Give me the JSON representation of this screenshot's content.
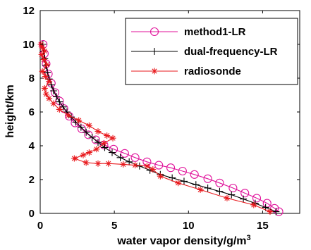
{
  "chart_data": {
    "type": "line",
    "title": "",
    "xlabel": "water vapor density/g/m",
    "xlabel_sup": "3",
    "ylabel": "height/km",
    "xlim": [
      0,
      17.5
    ],
    "ylim": [
      0,
      12
    ],
    "xticks": [
      0,
      5,
      10,
      15
    ],
    "yticks": [
      0,
      2,
      4,
      6,
      8,
      10,
      12
    ],
    "grid": false,
    "legend_position": "top-right",
    "series": [
      {
        "name": "method1-LR",
        "color": "#e0109a",
        "marker": "circle",
        "x": [
          16.1,
          15.8,
          15.3,
          14.6,
          13.8,
          13.0,
          12.1,
          11.3,
          10.4,
          9.6,
          8.8,
          8.0,
          7.2,
          6.4,
          5.7,
          4.95,
          4.3,
          3.75,
          3.25,
          2.8,
          2.35,
          1.95,
          1.6,
          1.3,
          1.0,
          0.75,
          0.55,
          0.4,
          0.28,
          0.2
        ],
        "y": [
          0.1,
          0.3,
          0.6,
          0.9,
          1.2,
          1.5,
          1.8,
          2.05,
          2.3,
          2.5,
          2.7,
          2.85,
          3.05,
          3.3,
          3.55,
          3.8,
          4.05,
          4.35,
          4.65,
          5.0,
          5.35,
          5.75,
          6.2,
          6.65,
          7.15,
          7.7,
          8.25,
          8.85,
          9.45,
          10.0
        ]
      },
      {
        "name": "dual-frequency-LR",
        "color": "#000000",
        "marker": "plus",
        "x": [
          15.9,
          15.2,
          14.5,
          13.7,
          12.9,
          12.1,
          11.3,
          10.5,
          9.7,
          8.9,
          8.1,
          7.4,
          6.7,
          6.0,
          5.4,
          4.85,
          4.35,
          3.9,
          3.5,
          3.1,
          2.75,
          2.4,
          2.1,
          1.8,
          1.55,
          1.3,
          1.1,
          0.9,
          0.75,
          0.6,
          0.48,
          0.38,
          0.3,
          0.22,
          0.18
        ],
        "y": [
          0.1,
          0.35,
          0.6,
          0.85,
          1.1,
          1.3,
          1.5,
          1.7,
          1.9,
          2.1,
          2.3,
          2.55,
          2.8,
          3.05,
          3.3,
          3.6,
          3.9,
          4.2,
          4.5,
          4.8,
          5.1,
          5.4,
          5.7,
          6.0,
          6.3,
          6.6,
          6.9,
          7.25,
          7.6,
          7.95,
          8.35,
          8.75,
          9.15,
          9.6,
          10.0
        ]
      },
      {
        "name": "radiosonde",
        "color": "#e8181c",
        "marker": "asterisk",
        "x": [
          15.5,
          14.4,
          12.6,
          10.8,
          9.3,
          8.1,
          7.6,
          7.2,
          6.4,
          5.6,
          4.6,
          3.9,
          3.1,
          2.3,
          2.9,
          3.3,
          3.8,
          4.3,
          4.9,
          4.5,
          3.9,
          3.3,
          2.6,
          1.9,
          1.3,
          0.9,
          0.6,
          0.4,
          0.3,
          0.6,
          0.35,
          0.15,
          0.45,
          0.25,
          0.1,
          0.3,
          0.15,
          0.05
        ],
        "y": [
          0.1,
          0.5,
          0.9,
          1.4,
          1.8,
          2.2,
          2.6,
          2.8,
          2.85,
          2.9,
          2.95,
          2.95,
          3.0,
          3.25,
          3.45,
          3.6,
          3.8,
          4.15,
          4.45,
          4.6,
          4.85,
          5.2,
          5.5,
          5.8,
          6.15,
          6.5,
          6.8,
          7.05,
          7.4,
          7.8,
          8.1,
          8.4,
          8.8,
          9.1,
          9.4,
          9.6,
          9.8,
          10.0
        ]
      }
    ]
  }
}
